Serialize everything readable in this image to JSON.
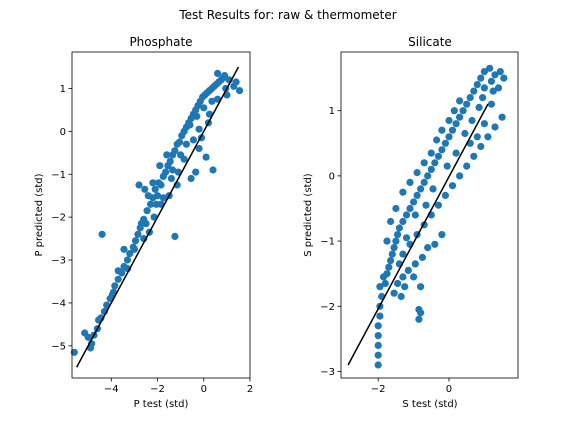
{
  "figure": {
    "suptitle": "Test Results for: raw & thermometer",
    "point_color": "#1f77b4",
    "line_color": "#000000"
  },
  "chart_data": [
    {
      "type": "scatter",
      "title": "Phosphate",
      "xlabel": "P test (std)",
      "ylabel": "P predicted (std)",
      "xlim": [
        -5.7,
        2.0
      ],
      "ylim": [
        -5.75,
        1.85
      ],
      "xticks": [
        -4,
        -2,
        0,
        2
      ],
      "yticks": [
        -5,
        -4,
        -3,
        -2,
        -1,
        0,
        1
      ],
      "grid": false,
      "fit_line": {
        "x": [
          -5.5,
          1.5
        ],
        "y": [
          -5.5,
          1.5
        ]
      },
      "points": [
        [
          -5.6,
          -5.15
        ],
        [
          -5.15,
          -4.7
        ],
        [
          -5.0,
          -4.8
        ],
        [
          -4.85,
          -4.95
        ],
        [
          -4.9,
          -5.05
        ],
        [
          -4.75,
          -4.75
        ],
        [
          -4.6,
          -4.6
        ],
        [
          -4.45,
          -4.35
        ],
        [
          -4.3,
          -4.2
        ],
        [
          -4.2,
          -4.05
        ],
        [
          -4.05,
          -3.9
        ],
        [
          -3.95,
          -3.8
        ],
        [
          -3.85,
          -3.6
        ],
        [
          -3.7,
          -3.45
        ],
        [
          -3.55,
          -3.3
        ],
        [
          -3.45,
          -3.15
        ],
        [
          -3.3,
          -3.0
        ],
        [
          -3.2,
          -2.85
        ],
        [
          -3.05,
          -2.7
        ],
        [
          -2.95,
          -2.55
        ],
        [
          -2.85,
          -2.4
        ],
        [
          -2.75,
          -2.25
        ],
        [
          -2.6,
          -2.05
        ],
        [
          -2.5,
          -2.15
        ],
        [
          -2.45,
          -1.85
        ],
        [
          -2.3,
          -1.7
        ],
        [
          -2.2,
          -1.55
        ],
        [
          -2.1,
          -1.35
        ],
        [
          -2.0,
          -1.5
        ],
        [
          -1.95,
          -1.2
        ],
        [
          -1.85,
          -1.25
        ],
        [
          -1.75,
          -1.05
        ],
        [
          -1.65,
          -0.95
        ],
        [
          -1.55,
          -0.8
        ],
        [
          -1.45,
          -0.7
        ],
        [
          -1.35,
          -0.55
        ],
        [
          -1.25,
          -0.45
        ],
        [
          -1.15,
          -0.3
        ],
        [
          -1.05,
          -0.25
        ],
        [
          -0.95,
          -0.1
        ],
        [
          -0.85,
          0.0
        ],
        [
          -0.75,
          0.1
        ],
        [
          -0.65,
          0.2
        ],
        [
          -0.55,
          0.3
        ],
        [
          -0.45,
          0.4
        ],
        [
          -0.35,
          0.5
        ],
        [
          -0.25,
          0.6
        ],
        [
          -0.15,
          0.7
        ],
        [
          -0.05,
          0.8
        ],
        [
          0.05,
          0.85
        ],
        [
          0.15,
          0.9
        ],
        [
          0.25,
          0.95
        ],
        [
          0.35,
          1.0
        ],
        [
          0.45,
          1.05
        ],
        [
          0.55,
          1.1
        ],
        [
          0.65,
          1.15
        ],
        [
          0.75,
          1.2
        ],
        [
          0.85,
          1.25
        ],
        [
          0.95,
          1.0
        ],
        [
          1.1,
          1.2
        ],
        [
          1.3,
          1.05
        ],
        [
          1.4,
          1.15
        ],
        [
          1.55,
          0.95
        ],
        [
          0.6,
          1.35
        ],
        [
          0.9,
          1.3
        ],
        [
          -4.4,
          -2.4
        ],
        [
          -2.8,
          -1.25
        ],
        [
          -2.55,
          -1.35
        ],
        [
          -2.2,
          -1.2
        ],
        [
          -1.85,
          -1.7
        ],
        [
          -1.5,
          -1.5
        ],
        [
          -1.25,
          -2.45
        ],
        [
          -1.15,
          -1.25
        ],
        [
          -0.55,
          -1.1
        ],
        [
          -0.35,
          -0.95
        ],
        [
          0.4,
          -0.9
        ],
        [
          0.1,
          -0.6
        ],
        [
          -0.2,
          -0.4
        ],
        [
          -3.45,
          -2.75
        ],
        [
          -3.7,
          -3.25
        ],
        [
          -3.0,
          -2.75
        ],
        [
          -2.7,
          -2.15
        ],
        [
          -2.4,
          -1.5
        ],
        [
          -2.05,
          -1.7
        ],
        [
          -1.9,
          -0.8
        ],
        [
          -1.6,
          -0.55
        ],
        [
          -1.35,
          -0.9
        ],
        [
          -1.0,
          -0.55
        ],
        [
          -0.75,
          -0.3
        ],
        [
          -0.6,
          0.15
        ],
        [
          -0.3,
          0.35
        ],
        [
          0.0,
          0.55
        ],
        [
          0.2,
          0.2
        ],
        [
          0.35,
          0.7
        ],
        [
          -0.1,
          -0.15
        ],
        [
          -0.45,
          -0.2
        ],
        [
          -1.75,
          -1.55
        ],
        [
          -2.15,
          -2.0
        ],
        [
          -2.35,
          -2.35
        ],
        [
          -2.6,
          -2.5
        ],
        [
          -3.3,
          -3.2
        ],
        [
          -3.9,
          -3.75
        ],
        [
          -4.55,
          -4.4
        ],
        [
          -1.1,
          -0.95
        ],
        [
          -0.85,
          -0.65
        ],
        [
          -0.2,
          0.05
        ],
        [
          0.25,
          0.4
        ],
        [
          0.6,
          0.75
        ],
        [
          1.0,
          0.85
        ],
        [
          -1.4,
          -1.1
        ]
      ]
    },
    {
      "type": "scatter",
      "title": "Silicate",
      "xlabel": "S test (std)",
      "ylabel": "S predicted (std)",
      "xlim": [
        -3.05,
        1.95
      ],
      "ylim": [
        -3.1,
        1.9
      ],
      "xticks": [
        -2,
        0
      ],
      "yticks": [
        -3,
        -2,
        -1,
        0,
        1
      ],
      "grid": false,
      "fit_line": {
        "x": [
          -2.85,
          1.1
        ],
        "y": [
          -2.9,
          1.1
        ]
      },
      "points": [
        [
          -2.0,
          -2.9
        ],
        [
          -2.0,
          -2.75
        ],
        [
          -2.0,
          -2.6
        ],
        [
          -2.0,
          -2.45
        ],
        [
          -2.0,
          -2.3
        ],
        [
          -1.95,
          -2.15
        ],
        [
          -1.95,
          -2.0
        ],
        [
          -1.9,
          -1.85
        ],
        [
          -1.95,
          -1.7
        ],
        [
          -1.85,
          -1.55
        ],
        [
          -1.8,
          -1.65
        ],
        [
          -1.75,
          -1.5
        ],
        [
          -1.7,
          -1.4
        ],
        [
          -1.65,
          -1.3
        ],
        [
          -1.6,
          -1.2
        ],
        [
          -1.55,
          -1.1
        ],
        [
          -1.5,
          -1.0
        ],
        [
          -1.45,
          -0.9
        ],
        [
          -1.4,
          -0.8
        ],
        [
          -1.3,
          -0.7
        ],
        [
          -1.2,
          -0.6
        ],
        [
          -1.1,
          -0.5
        ],
        [
          -1.0,
          -0.4
        ],
        [
          -0.9,
          -0.3
        ],
        [
          -0.8,
          -0.2
        ],
        [
          -0.7,
          -0.1
        ],
        [
          -0.6,
          0.0
        ],
        [
          -0.5,
          0.1
        ],
        [
          -0.4,
          0.2
        ],
        [
          -0.3,
          0.3
        ],
        [
          -0.2,
          0.4
        ],
        [
          -0.1,
          0.5
        ],
        [
          0.0,
          0.6
        ],
        [
          0.1,
          0.7
        ],
        [
          0.2,
          0.8
        ],
        [
          0.3,
          0.9
        ],
        [
          0.4,
          1.0
        ],
        [
          0.5,
          1.1
        ],
        [
          0.6,
          1.2
        ],
        [
          0.7,
          1.3
        ],
        [
          0.8,
          1.4
        ],
        [
          0.9,
          1.5
        ],
        [
          1.0,
          1.6
        ],
        [
          1.15,
          1.65
        ],
        [
          1.3,
          1.55
        ],
        [
          1.45,
          1.6
        ],
        [
          1.55,
          1.5
        ],
        [
          1.2,
          1.45
        ],
        [
          1.4,
          1.35
        ],
        [
          0.95,
          1.2
        ],
        [
          -1.3,
          -1.2
        ],
        [
          -1.1,
          -1.05
        ],
        [
          -0.9,
          -0.9
        ],
        [
          -0.7,
          -0.75
        ],
        [
          -0.5,
          -0.6
        ],
        [
          -0.3,
          -0.45
        ],
        [
          -0.1,
          -0.3
        ],
        [
          0.1,
          -0.15
        ],
        [
          0.3,
          0.0
        ],
        [
          0.5,
          0.15
        ],
        [
          0.7,
          0.3
        ],
        [
          0.9,
          0.45
        ],
        [
          1.1,
          0.6
        ],
        [
          1.3,
          0.75
        ],
        [
          1.5,
          0.9
        ],
        [
          1.0,
          0.8
        ],
        [
          0.8,
          0.6
        ],
        [
          0.6,
          0.5
        ],
        [
          -1.65,
          -0.7
        ],
        [
          -1.5,
          -0.5
        ],
        [
          -1.3,
          -0.25
        ],
        [
          -1.1,
          -0.1
        ],
        [
          -0.9,
          0.05
        ],
        [
          -0.7,
          0.2
        ],
        [
          -0.5,
          0.35
        ],
        [
          -0.35,
          0.55
        ],
        [
          -0.2,
          0.7
        ],
        [
          0.0,
          0.85
        ],
        [
          0.15,
          1.0
        ],
        [
          0.3,
          1.15
        ],
        [
          -1.55,
          -1.8
        ],
        [
          -1.45,
          -1.65
        ],
        [
          -1.3,
          -1.55
        ],
        [
          -1.15,
          -1.45
        ],
        [
          -0.95,
          -1.35
        ],
        [
          -0.75,
          -1.25
        ],
        [
          -0.6,
          -1.1
        ],
        [
          -0.4,
          -1.05
        ],
        [
          -0.2,
          -0.9
        ],
        [
          -0.8,
          -1.7
        ],
        [
          -0.85,
          -2.2
        ],
        [
          -0.8,
          -2.1
        ],
        [
          -0.85,
          -2.05
        ],
        [
          -1.35,
          -1.85
        ],
        [
          -1.25,
          -1.7
        ],
        [
          -1.0,
          -1.55
        ],
        [
          1.2,
          1.1
        ],
        [
          1.0,
          1.35
        ],
        [
          0.85,
          1.05
        ],
        [
          -1.75,
          -1.0
        ],
        [
          -0.45,
          -0.2
        ],
        [
          -0.65,
          -0.45
        ],
        [
          -0.05,
          0.15
        ],
        [
          0.2,
          0.35
        ],
        [
          0.45,
          0.65
        ],
        [
          0.65,
          0.85
        ],
        [
          -1.2,
          -0.95
        ],
        [
          -1.4,
          -1.35
        ],
        [
          -0.95,
          -0.6
        ],
        [
          1.25,
          1.3
        ]
      ]
    }
  ]
}
